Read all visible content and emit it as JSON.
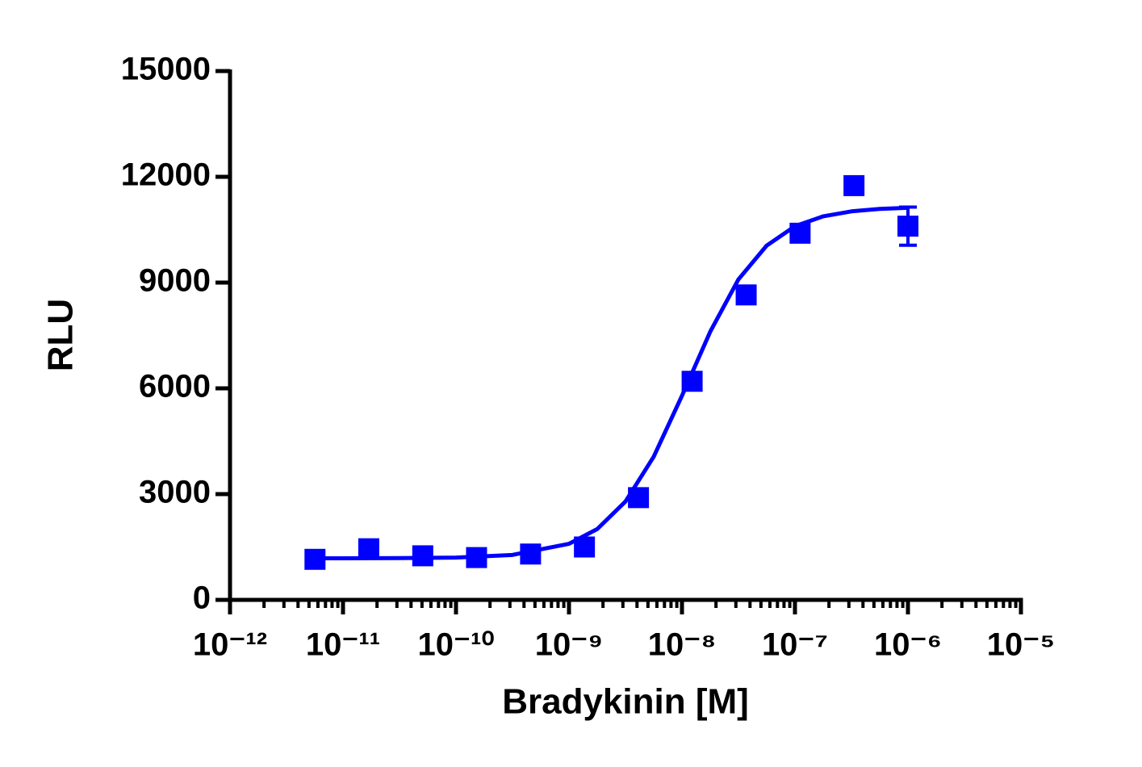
{
  "chart_data": {
    "type": "scatter",
    "x_label": "Bradykinin [M]",
    "y_label": "RLU",
    "x_scale": "log",
    "minor_ticks": true,
    "xlim": [
      1e-12,
      1e-05
    ],
    "xticks": [
      {
        "value": 1e-12,
        "label": "10⁻¹²"
      },
      {
        "value": 1e-11,
        "label": "10⁻¹¹"
      },
      {
        "value": 1e-10,
        "label": "10⁻¹⁰"
      },
      {
        "value": 1e-09,
        "label": "10⁻⁹"
      },
      {
        "value": 1e-08,
        "label": "10⁻⁸"
      },
      {
        "value": 1e-07,
        "label": "10⁻⁷"
      },
      {
        "value": 1e-06,
        "label": "10⁻⁶"
      },
      {
        "value": 1e-05,
        "label": "10⁻⁵"
      }
    ],
    "ylim": [
      0,
      15000
    ],
    "yticks": [
      0,
      3000,
      6000,
      9000,
      12000,
      15000
    ],
    "points": {
      "color": "#0000ff",
      "x": [
        5.65e-12,
        1.69e-11,
        5.08e-11,
        1.52e-10,
        4.57e-10,
        1.37e-09,
        4.12e-09,
        1.23e-08,
        3.7e-08,
        1.11e-07,
        3.33e-07,
        1e-06
      ],
      "values": [
        1150,
        1450,
        1250,
        1200,
        1300,
        1500,
        2900,
        6200,
        8650,
        10400,
        11750,
        10600
      ],
      "errors": [
        null,
        null,
        null,
        null,
        null,
        null,
        null,
        null,
        null,
        null,
        null,
        540
      ]
    },
    "curve": {
      "color": "#0000ff",
      "x": [
        5.45e-12,
        1e-11,
        3.16e-11,
        1e-10,
        3.16e-10,
        1e-09,
        1.78e-09,
        3.16e-09,
        5.62e-09,
        1e-08,
        1.78e-08,
        3.16e-08,
        5.62e-08,
        1e-07,
        1.78e-07,
        3.16e-07,
        5.62e-07,
        1e-06
      ],
      "values": [
        1180,
        1180,
        1185,
        1200,
        1275,
        1590,
        2010,
        2790,
        4060,
        5790,
        7610,
        9090,
        10050,
        10600,
        10880,
        11020,
        11090,
        11120
      ]
    }
  }
}
